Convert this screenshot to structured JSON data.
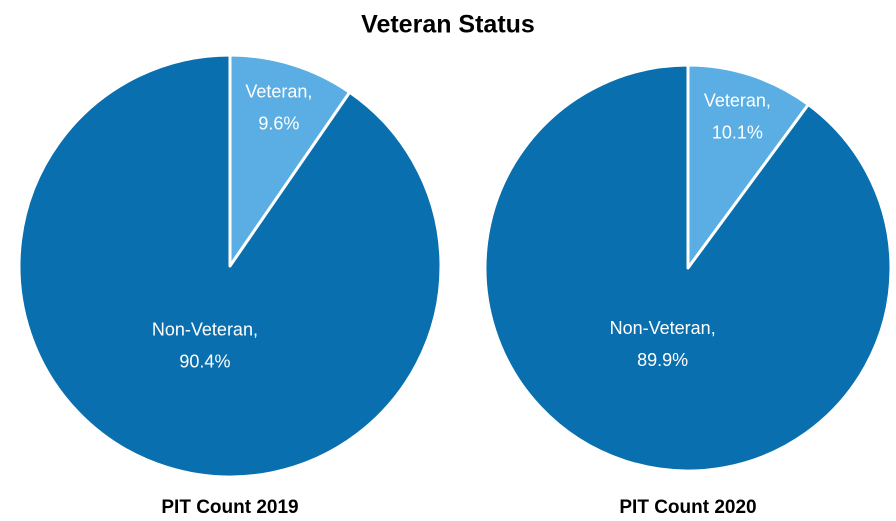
{
  "title": "Veteran Status",
  "chart_data": [
    {
      "type": "pie",
      "subtitle": "PIT Count 2019",
      "categories": [
        "Veteran,",
        "Non-Veteran,"
      ],
      "values": [
        9.6,
        90.4
      ],
      "value_labels": [
        "9.6%",
        "90.4%"
      ],
      "colors": [
        "#5aaee3",
        "#0a6fae"
      ]
    },
    {
      "type": "pie",
      "subtitle": "PIT Count 2020",
      "categories": [
        "Veteran,",
        "Non-Veteran,"
      ],
      "values": [
        10.1,
        89.9
      ],
      "value_labels": [
        "10.1%",
        "89.9%"
      ],
      "colors": [
        "#5aaee3",
        "#0a6fae"
      ]
    }
  ]
}
